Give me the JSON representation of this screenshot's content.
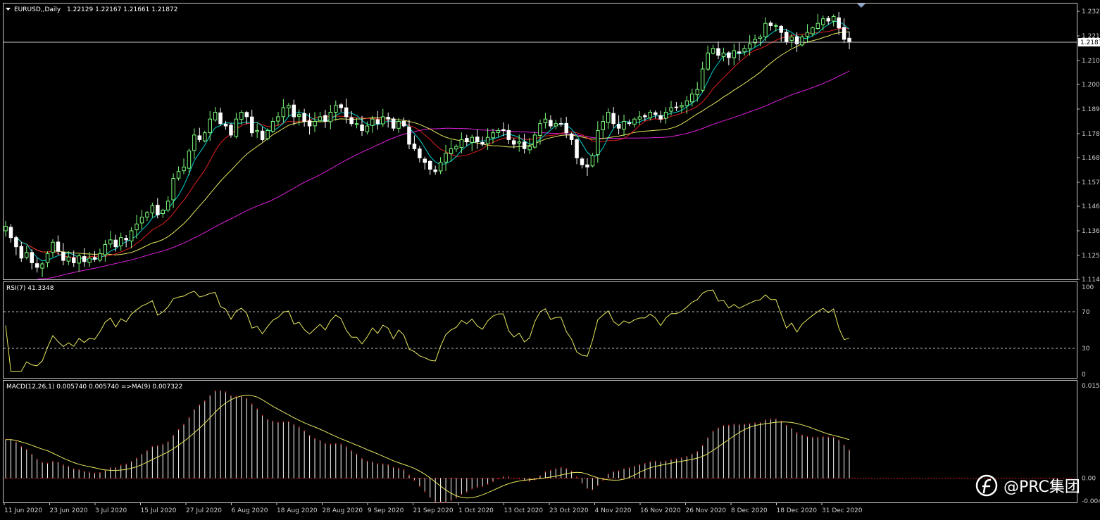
{
  "header": {
    "symbol": "EURUSD,,Daily",
    "ohlc": "1.22129 1.22167 1.21661 1.21872",
    "dropdown_icon": "triangle-down-icon"
  },
  "watermark": {
    "text": "@PRC集团",
    "icon": "prc-logo-icon"
  },
  "colors": {
    "background": "#000000",
    "bull": "#7CFC7C",
    "bear": "#ffffff",
    "ma_fast": "#00d0d0",
    "ma_mid": "#e02020",
    "ma_slow": "#e8e860",
    "ma_long": "#e020e0",
    "rsi": "#e8e860",
    "macd_hist": "#ffffff",
    "macd_signal": "#e8e860",
    "frame": "#c8c8c8"
  },
  "price_panel": {
    "price_labels": [
      "1.2323",
      "1.2215",
      "1.2107",
      "1.2002",
      "1.1894",
      "1.1786",
      "1.1681",
      "1.1573",
      "1.1468",
      "1.1360",
      "1.1252",
      "1.1147"
    ],
    "current_price_label": "1.2187"
  },
  "rsi_panel": {
    "title": "RSI(7) 41.3348",
    "levels": [
      "100",
      "70",
      "30",
      "0"
    ]
  },
  "macd_panel": {
    "title": "MACD(12,26,1) 0.005740 0.005740  =>MA(9) 0.007322",
    "labels": [
      "0.0157",
      "0.00",
      "-0.0040"
    ]
  },
  "date_labels": [
    "11 Jun 2020",
    "23 Jun 2020",
    "3 Jul 2020",
    "15 Jul 2020",
    "27 Jul 2020",
    "6 Aug 2020",
    "18 Aug 2020",
    "28 Aug 2020",
    "9 Sep 2020",
    "21 Sep 2020",
    "1 Oct 2020",
    "13 Oct 2020",
    "23 Oct 2020",
    "4 Nov 2020",
    "16 Nov 2020",
    "26 Nov 2020",
    "8 Dec 2020",
    "18 Dec 2020",
    "31 Dec 2020"
  ],
  "chart_data": [
    {
      "type": "candlestick",
      "title": "EURUSD,,Daily",
      "x": "trading days 10 Jun 2020 – 6 Jan 2021",
      "ylim": [
        1.1147,
        1.236
      ],
      "current": 1.21872,
      "close": [
        1.138,
        1.133,
        1.129,
        1.124,
        1.1265,
        1.122,
        1.12,
        1.1215,
        1.126,
        1.131,
        1.127,
        1.123,
        1.1245,
        1.122,
        1.125,
        1.1225,
        1.124,
        1.1235,
        1.126,
        1.13,
        1.132,
        1.129,
        1.133,
        1.132,
        1.136,
        1.139,
        1.142,
        1.144,
        1.147,
        1.143,
        1.145,
        1.149,
        1.159,
        1.162,
        1.164,
        1.171,
        1.178,
        1.176,
        1.179,
        1.185,
        1.188,
        1.183,
        1.182,
        1.178,
        1.185,
        1.188,
        1.186,
        1.179,
        1.18,
        1.176,
        1.18,
        1.184,
        1.186,
        1.19,
        1.191,
        1.186,
        1.187,
        1.184,
        1.182,
        1.184,
        1.186,
        1.184,
        1.188,
        1.191,
        1.19,
        1.186,
        1.183,
        1.183,
        1.18,
        1.182,
        1.185,
        1.183,
        1.186,
        1.185,
        1.181,
        1.184,
        1.182,
        1.174,
        1.172,
        1.168,
        1.166,
        1.163,
        1.162,
        1.166,
        1.17,
        1.172,
        1.173,
        1.176,
        1.175,
        1.177,
        1.175,
        1.174,
        1.177,
        1.179,
        1.18,
        1.18,
        1.176,
        1.174,
        1.175,
        1.172,
        1.173,
        1.178,
        1.183,
        1.185,
        1.182,
        1.183,
        1.183,
        1.179,
        1.176,
        1.168,
        1.165,
        1.164,
        1.169,
        1.18,
        1.184,
        1.188,
        1.183,
        1.181,
        1.184,
        1.183,
        1.185,
        1.186,
        1.186,
        1.188,
        1.187,
        1.185,
        1.188,
        1.19,
        1.19,
        1.191,
        1.193,
        1.196,
        1.198,
        1.207,
        1.214,
        1.216,
        1.213,
        1.214,
        1.212,
        1.215,
        1.214,
        1.216,
        1.218,
        1.22,
        1.221,
        1.227,
        1.226,
        1.226,
        1.223,
        1.219,
        1.221,
        1.218,
        1.221,
        1.223,
        1.225,
        1.227,
        1.229,
        1.228,
        1.23,
        1.225,
        1.22,
        1.2187
      ]
    },
    {
      "type": "line",
      "title": "RSI(7) 41.3348",
      "ylim": [
        0,
        100
      ],
      "levels": [
        70,
        30
      ],
      "last": 41.3348
    },
    {
      "type": "bar",
      "title": "MACD(12,26,1) 0.005740 0.005740  =>MA(9) 0.007322",
      "ylim": [
        -0.004,
        0.0157
      ],
      "series": [
        {
          "name": "MACD(12,26,1)",
          "last": 0.00574
        },
        {
          "name": "MA(9)",
          "last": 0.007322
        }
      ]
    }
  ]
}
